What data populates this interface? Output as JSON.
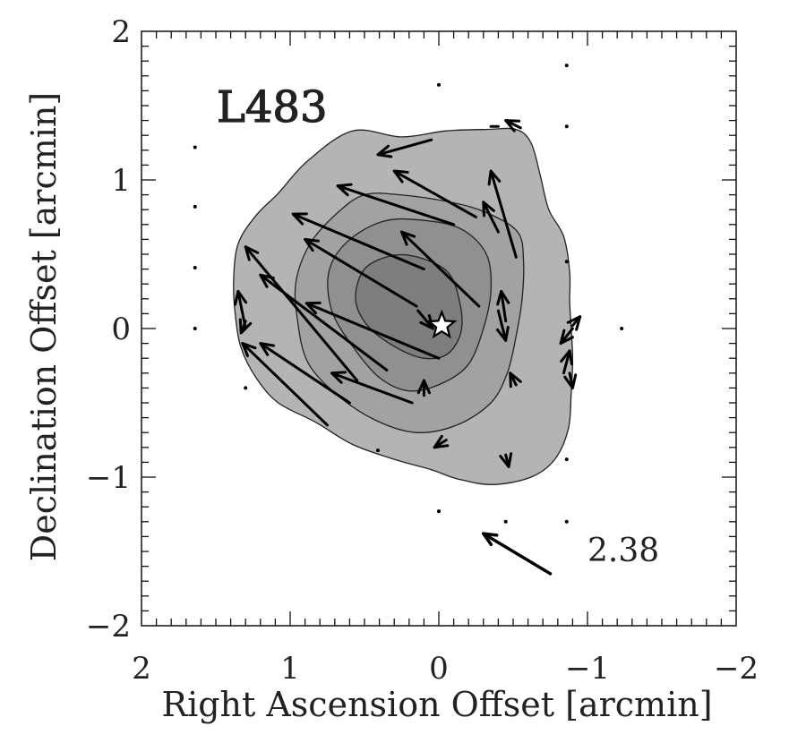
{
  "chart_data": {
    "type": "scatter",
    "title": "L483",
    "xlabel": "Right Ascension Offset [arcmin]",
    "ylabel": "Declination Offset [arcmin]",
    "xlim": [
      2,
      -2
    ],
    "ylim": [
      -2,
      2
    ],
    "x_ticks": [
      2,
      1,
      0,
      -1,
      -2
    ],
    "y_ticks": [
      2,
      1,
      0,
      -1,
      -2
    ],
    "x_tick_labels": [
      "2",
      "1",
      "0",
      "−1",
      "−2"
    ],
    "y_tick_labels": [
      "2",
      "1",
      "0",
      "−1",
      "−2"
    ],
    "contours": [
      {
        "level": 1,
        "fill": "#b4b4b4",
        "points": [
          [
            0.58,
            1.33
          ],
          [
            0.25,
            1.29
          ],
          [
            -0.05,
            1.33
          ],
          [
            -0.32,
            1.34
          ],
          [
            -0.52,
            1.34
          ],
          [
            -0.62,
            1.25
          ],
          [
            -0.68,
            1.04
          ],
          [
            -0.74,
            0.8
          ],
          [
            -0.84,
            0.62
          ],
          [
            -0.88,
            0.38
          ],
          [
            -0.88,
            0.18
          ],
          [
            -0.89,
            0
          ],
          [
            -0.9,
            -0.2
          ],
          [
            -0.89,
            -0.45
          ],
          [
            -0.87,
            -0.68
          ],
          [
            -0.78,
            -0.88
          ],
          [
            -0.62,
            -1.0
          ],
          [
            -0.36,
            -1.05
          ],
          [
            -0.12,
            -1.01
          ],
          [
            0.05,
            -0.95
          ],
          [
            0.3,
            -0.88
          ],
          [
            0.58,
            -0.78
          ],
          [
            0.83,
            -0.63
          ],
          [
            1.08,
            -0.5
          ],
          [
            1.23,
            -0.33
          ],
          [
            1.33,
            -0.13
          ],
          [
            1.37,
            0.1
          ],
          [
            1.38,
            0.33
          ],
          [
            1.35,
            0.57
          ],
          [
            1.23,
            0.76
          ],
          [
            1.08,
            0.91
          ],
          [
            0.88,
            1.13
          ]
        ]
      },
      {
        "level": 2,
        "fill": "#a2a2a2",
        "points": [
          [
            0.26,
            0.9
          ],
          [
            -0.08,
            0.85
          ],
          [
            -0.32,
            0.78
          ],
          [
            -0.53,
            0.65
          ],
          [
            -0.57,
            0.45
          ],
          [
            -0.56,
            0.2
          ],
          [
            -0.52,
            -0.05
          ],
          [
            -0.46,
            -0.3
          ],
          [
            -0.35,
            -0.5
          ],
          [
            -0.12,
            -0.65
          ],
          [
            0.15,
            -0.7
          ],
          [
            0.42,
            -0.62
          ],
          [
            0.68,
            -0.45
          ],
          [
            0.88,
            -0.23
          ],
          [
            0.95,
            0.05
          ],
          [
            0.96,
            0.32
          ],
          [
            0.86,
            0.58
          ],
          [
            0.68,
            0.78
          ],
          [
            0.5,
            0.9
          ]
        ]
      },
      {
        "level": 3,
        "fill": "#909090",
        "points": [
          [
            0.12,
            0.73
          ],
          [
            -0.15,
            0.67
          ],
          [
            -0.32,
            0.5
          ],
          [
            -0.35,
            0.25
          ],
          [
            -0.3,
            0
          ],
          [
            -0.2,
            -0.24
          ],
          [
            -0.02,
            -0.37
          ],
          [
            0.2,
            -0.42
          ],
          [
            0.4,
            -0.33
          ],
          [
            0.58,
            -0.12
          ],
          [
            0.72,
            0.12
          ],
          [
            0.74,
            0.38
          ],
          [
            0.62,
            0.58
          ],
          [
            0.38,
            0.72
          ]
        ]
      },
      {
        "level": 4,
        "fill": "#7e7e7e",
        "points": [
          [
            0.14,
            0.48
          ],
          [
            -0.06,
            0.38
          ],
          [
            -0.14,
            0.18
          ],
          [
            -0.15,
            -0.02
          ],
          [
            -0.06,
            -0.17
          ],
          [
            0.1,
            -0.2
          ],
          [
            0.3,
            -0.12
          ],
          [
            0.48,
            0.02
          ],
          [
            0.56,
            0.2
          ],
          [
            0.5,
            0.4
          ],
          [
            0.32,
            0.49
          ]
        ]
      }
    ],
    "vectors": [
      {
        "from": [
          0.05,
          1.27
        ],
        "to": [
          0.41,
          1.17
        ],
        "head": true
      },
      {
        "from": [
          -0.35,
          1.36
        ],
        "to": [
          -0.4,
          1.36
        ],
        "head": false
      },
      {
        "from": [
          -0.55,
          1.35
        ],
        "to": [
          -0.45,
          1.4
        ],
        "head": true
      },
      {
        "from": [
          -0.1,
          0.7
        ],
        "to": [
          0.68,
          0.96
        ],
        "head": true
      },
      {
        "from": [
          -0.25,
          0.75
        ],
        "to": [
          0.3,
          1.06
        ],
        "head": true
      },
      {
        "from": [
          -0.4,
          0.65
        ],
        "to": [
          -0.3,
          0.85
        ],
        "head": true
      },
      {
        "from": [
          -0.52,
          0.48
        ],
        "to": [
          -0.35,
          1.06
        ],
        "head": true
      },
      {
        "from": [
          0.1,
          0.4
        ],
        "to": [
          0.98,
          0.77
        ],
        "head": true
      },
      {
        "from": [
          0.15,
          0.15
        ],
        "to": [
          0.9,
          0.6
        ],
        "head": true
      },
      {
        "from": [
          -0.27,
          0.15
        ],
        "to": [
          0.25,
          0.65
        ],
        "head": true
      },
      {
        "from": [
          0.0,
          -0.2
        ],
        "to": [
          0.89,
          0.17
        ],
        "head": true
      },
      {
        "from": [
          0.35,
          -0.28
        ],
        "to": [
          1.2,
          0.36
        ],
        "head": true
      },
      {
        "from": [
          0.55,
          -0.35
        ],
        "to": [
          1.3,
          0.55
        ],
        "head": true
      },
      {
        "from": [
          0.6,
          -0.5
        ],
        "to": [
          1.2,
          -0.1
        ],
        "head": true
      },
      {
        "from": [
          0.18,
          -0.5
        ],
        "to": [
          0.72,
          -0.3
        ],
        "head": true
      },
      {
        "from": [
          0.75,
          -0.65
        ],
        "to": [
          1.32,
          -0.1
        ],
        "head": true
      },
      {
        "from": [
          1.3,
          0.0
        ],
        "to": [
          1.35,
          0.25
        ],
        "head": true
      },
      {
        "from": [
          0.1,
          -0.45
        ],
        "to": [
          0.1,
          -0.35
        ],
        "head": true
      },
      {
        "from": [
          -0.4,
          0.12
        ],
        "to": [
          -0.45,
          -0.08
        ],
        "head": true
      },
      {
        "from": [
          -0.45,
          0.05
        ],
        "to": [
          -0.42,
          0.25
        ],
        "head": true
      },
      {
        "from": [
          -0.88,
          -0.3
        ],
        "to": [
          -0.9,
          -0.4
        ],
        "head": true
      },
      {
        "from": [
          -0.84,
          -0.3
        ],
        "to": [
          -0.88,
          -0.15
        ],
        "head": true
      },
      {
        "from": [
          -0.9,
          0.02
        ],
        "to": [
          -0.95,
          0.08
        ],
        "head": true
      },
      {
        "from": [
          -0.9,
          0.0
        ],
        "to": [
          -0.82,
          -0.1
        ],
        "head": true
      },
      {
        "from": [
          -0.52,
          -0.38
        ],
        "to": [
          -0.48,
          -0.3
        ],
        "head": true
      },
      {
        "from": [
          -0.45,
          -0.85
        ],
        "to": [
          -0.47,
          -0.93
        ],
        "head": true
      },
      {
        "from": [
          -0.05,
          -0.75
        ],
        "to": [
          0.03,
          -0.8
        ],
        "head": true
      },
      {
        "from": [
          1.3,
          0.05
        ],
        "to": [
          1.33,
          -0.03
        ],
        "head": true
      },
      {
        "from": [
          0.14,
          0.12
        ],
        "to": [
          0.04,
          0.0
        ],
        "head": true
      }
    ],
    "dots": [
      [
        1.64,
        1.22
      ],
      [
        1.64,
        0.82
      ],
      [
        1.64,
        0.41
      ],
      [
        1.64,
        0.0
      ],
      [
        1.3,
        -0.4
      ],
      [
        0.0,
        1.64
      ],
      [
        0.0,
        -1.23
      ],
      [
        -0.86,
        1.77
      ],
      [
        -0.86,
        1.36
      ],
      [
        -0.86,
        0.45
      ],
      [
        -0.86,
        -0.88
      ],
      [
        -0.86,
        -1.3
      ],
      [
        -0.45,
        -1.3
      ],
      [
        0.41,
        -0.82
      ],
      [
        -1.23,
        0.0
      ]
    ],
    "star": [
      -0.02,
      0.02
    ],
    "scale_vector": {
      "from": [
        -0.75,
        -1.65
      ],
      "to": [
        -0.3,
        -1.38
      ],
      "label": "2.38"
    },
    "grid": false,
    "legend": "none"
  }
}
